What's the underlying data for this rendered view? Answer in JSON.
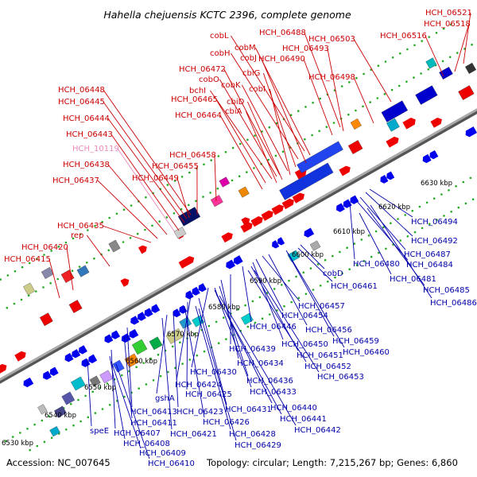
{
  "title": "Hahella chejuensis KCTC 2396, complete genome",
  "footer": {
    "accession": "Accession: NC_007645",
    "summary": "Topology: circular; Length: 7,215,267 bp; Genes: 6,860"
  },
  "scale_labels": [
    "6530 kbp",
    "6540 kbp",
    "6550 kbp",
    "6560 kbp",
    "6570 kbp",
    "6580 kbp",
    "6590 kbp",
    "6600 kbp",
    "6610 kbp",
    "6620 kbp",
    "6630 kbp"
  ],
  "top_labels": [
    "HCH_06521",
    "HCH_06518",
    "HCH_06516",
    "HCH_06503",
    "HCH_06498",
    "HCH_06488",
    "HCH_06493",
    "HCH_06490",
    "cobL",
    "cobM",
    "cobH",
    "cobJ",
    "cbiG",
    "cobK",
    "cobI",
    "HCH_06472",
    "cobO",
    "bchI",
    "HCH_06465",
    "cbiD",
    "cbiA",
    "HCH_06464",
    "HCH_06448",
    "HCH_06445",
    "HCH_06444",
    "HCH_06443",
    "HCH_10119",
    "HCH_06438",
    "HCH_06437",
    "HCH_06458",
    "HCH_06455",
    "HCH_06449",
    "HCH_06435",
    "rep",
    "HCH_06420",
    "HCH_06415"
  ],
  "bottom_labels": [
    "HCH_06494",
    "HCH_06492",
    "HCH_06487",
    "HCH_06484",
    "HCH_06480",
    "HCH_06481",
    "HCH_06485",
    "HCH_06486",
    "cobD",
    "HCH_06461",
    "HCH_06457",
    "HCH_06454",
    "HCH_06446",
    "HCH_06456",
    "HCH_06450",
    "HCH_06459",
    "HCH_06439",
    "HCH_06451",
    "HCH_06460",
    "HCH_06434",
    "HCH_06452",
    "HCH_06430",
    "HCH_06436",
    "HCH_06453",
    "HCH_06424",
    "HCH_06433",
    "HCH_06425",
    "gshA",
    "HCH_06440",
    "HCH_06431",
    "HCH_06413",
    "HCH_06423",
    "HCH_06441",
    "HCH_06411",
    "HCH_06426",
    "HCH_06442",
    "speE",
    "HCH_06407",
    "HCH_06421",
    "HCH_06428",
    "HCH_06408",
    "HCH_06429",
    "HCH_06409",
    "HCH_06410"
  ],
  "colors": {
    "forward_gene": "#ee0000",
    "reverse_gene": "#0000ee",
    "backbone": "#999999",
    "tick_dots": "#22aa22",
    "top_label": "#cc0000",
    "bottom_label": "#0000aa",
    "pseudo_label": "#ee88bb"
  }
}
